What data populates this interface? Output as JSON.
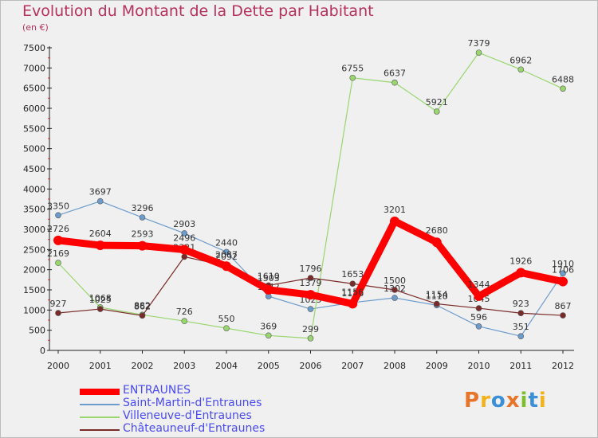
{
  "header": {
    "title": "Evolution du Montant de la Dette par Habitant",
    "subtitle": "(en €)"
  },
  "logo": {
    "text": "Proxiti",
    "colors": [
      "#e8742a",
      "#f2b21b",
      "#3a8fd6",
      "#e8742a",
      "#7cbf2d",
      "#3a8fd6",
      "#f2b21b"
    ]
  },
  "chart_data": {
    "type": "line",
    "title": "Evolution du Montant de la Dette par Habitant",
    "subtitle": "(en €)",
    "x": [
      "2000",
      "2001",
      "2002",
      "2003",
      "2004",
      "2005",
      "2006",
      "2007",
      "2008",
      "2009",
      "2010",
      "2011",
      "2012"
    ],
    "yticks": [
      0,
      500,
      1000,
      1500,
      2000,
      2500,
      3000,
      3500,
      4000,
      4500,
      5000,
      5500,
      6000,
      6500,
      7000,
      7500
    ],
    "ylim": [
      0,
      7500
    ],
    "grid": false,
    "legend_position": "bottom-left",
    "series": [
      {
        "name": "ENTRAUNES",
        "color": "#ff0000",
        "values": [
          2726,
          2604,
          2593,
          2496,
          2087,
          1503,
          1379,
          1156,
          3201,
          2680,
          1344,
          1926,
          1706
        ]
      },
      {
        "name": "Saint-Martin-d'Entraunes",
        "color": "#6c9ccc",
        "values": [
          3350,
          3697,
          3296,
          2903,
          2440,
          1342,
          1025,
          1186,
          1302,
          1118,
          596,
          351,
          1910
        ]
      },
      {
        "name": "Villeneuve-d'Entraunes",
        "color": "#99d66e",
        "values": [
          2169,
          1068,
          882,
          726,
          550,
          369,
          299,
          6755,
          6637,
          5921,
          7379,
          6962,
          6488
        ]
      },
      {
        "name": "Châteauneuf-d'Entraunes",
        "color": "#7b2a2a",
        "values": [
          927,
          1025,
          862,
          2321,
          2092,
          1610,
          1796,
          1653,
          1500,
          1154,
          1045,
          923,
          867
        ]
      }
    ]
  }
}
